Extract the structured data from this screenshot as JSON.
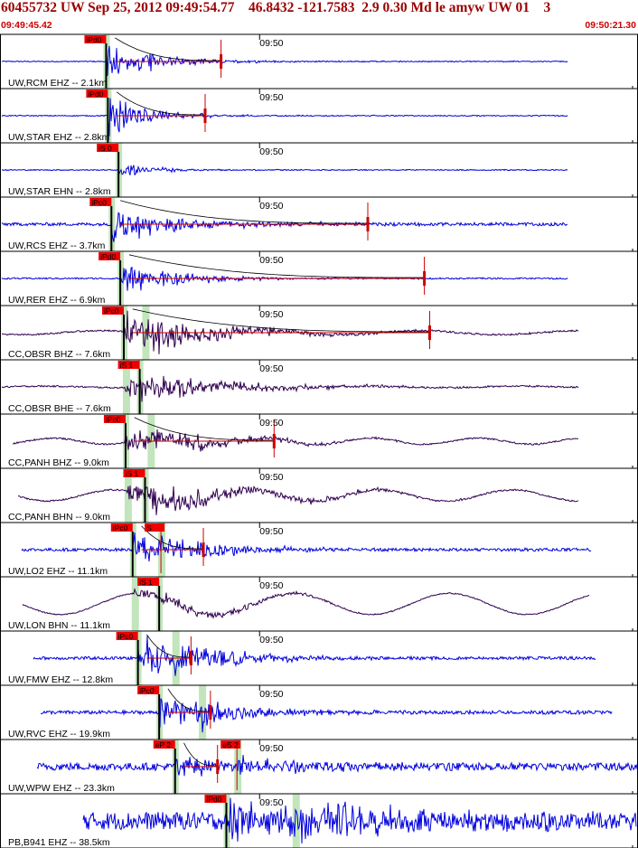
{
  "header": {
    "title": "60455732 UW Sep 25, 2012 09:49:54.77    46.8432 -121.7583  2.9 0.30 Md le amyw UW 01    3",
    "start_time": "09:49:45.42",
    "end_time": "09:50:21.30"
  },
  "colors": {
    "frame": "#000000",
    "title": "#9b0000",
    "time_label": "#cc0000",
    "seismogram_short_period": "#0000dd",
    "seismogram_broadband": "#300050",
    "coda_fit": "#cc0000",
    "pick_flag": "#ee0000",
    "pick_window": "#b8e0b0"
  },
  "chart_data": {
    "type": "line",
    "title": "60455732 UW Sep 25, 2012 09:49:54.77    46.8432 -121.7583  2.9 0.30 Md le amyw UW 01    3",
    "xlabel": "",
    "ylabel": "",
    "x_range_seconds": [
      0,
      35.88
    ],
    "x_start_label": "09:49:45.42",
    "x_end_label": "09:50:21.30",
    "minute_marker": {
      "label": "09:50",
      "t": 14.58
    },
    "grid": false,
    "traces": [
      {
        "label": "UW,RCM EHZ -- 2.1km",
        "net": "UW",
        "sta": "RCM",
        "chan": "EHZ",
        "dist_km": 2.1,
        "kind": "sp",
        "pick": "iPd0",
        "pick_t": 5.9,
        "coda_end_t": 12.4,
        "data_start_t": 0.0,
        "data_end_t": 32.0,
        "pre_noise": 0.02,
        "amp": 0.96,
        "decay": 2.4,
        "fdom": 9.0,
        "noise": 0.02,
        "dur": 6.0,
        "s_pick": null,
        "s_t": null,
        "drift_amp": 0.0,
        "drift_per": 0
      },
      {
        "label": "UW,STAR EHZ -- 2.8km",
        "net": "UW",
        "sta": "STAR",
        "chan": "EHZ",
        "dist_km": 2.8,
        "kind": "sp",
        "pick": "iPd0",
        "pick_t": 6.0,
        "coda_end_t": 11.5,
        "data_start_t": 0.0,
        "data_end_t": 32.0,
        "pre_noise": 0.02,
        "amp": 0.95,
        "decay": 1.8,
        "fdom": 9.0,
        "noise": 0.02,
        "dur": 5.5,
        "s_pick": null,
        "s_t": null,
        "drift_amp": 0.0,
        "drift_per": 0
      },
      {
        "label": "UW,STAR EHN -- 2.8km",
        "net": "UW",
        "sta": "STAR",
        "chan": "EHN",
        "dist_km": 2.8,
        "kind": "sp",
        "pick": "iS 0",
        "pick_t": 6.6,
        "coda_end_t": null,
        "data_start_t": 0.0,
        "data_end_t": 32.0,
        "pre_noise": 0.02,
        "amp": 0.5,
        "decay": 1.4,
        "fdom": 8.0,
        "noise": 0.02,
        "dur": 3.0,
        "s_pick": null,
        "s_t": null,
        "drift_amp": 0.0,
        "drift_per": 0
      },
      {
        "label": "UW,RCS EHZ -- 3.7km",
        "net": "UW",
        "sta": "RCS",
        "chan": "EHZ",
        "dist_km": 3.7,
        "kind": "sp",
        "pick": "iPc0",
        "pick_t": 6.2,
        "coda_end_t": 20.7,
        "data_start_t": 0.0,
        "data_end_t": 32.0,
        "pre_noise": 0.06,
        "amp": 0.95,
        "decay": 3.0,
        "fdom": 9.0,
        "noise": 0.06,
        "dur": 14.0,
        "s_pick": null,
        "s_t": null,
        "drift_amp": 0.0,
        "drift_per": 0
      },
      {
        "label": "UW,RER EHZ -- 6.9km",
        "net": "UW",
        "sta": "RER",
        "chan": "EHZ",
        "dist_km": 6.9,
        "kind": "sp",
        "pick": "iPd0",
        "pick_t": 6.7,
        "coda_end_t": 23.9,
        "data_start_t": 0.0,
        "data_end_t": 32.0,
        "pre_noise": 0.03,
        "amp": 0.95,
        "decay": 2.4,
        "fdom": 9.0,
        "noise": 0.03,
        "dur": 8.0,
        "s_pick": null,
        "s_t": null,
        "drift_amp": 0.0,
        "drift_per": 0
      },
      {
        "label": "CC,OBSR BHZ -- 7.6km",
        "net": "CC",
        "sta": "OBSR",
        "chan": "BHZ",
        "dist_km": 7.6,
        "kind": "bb",
        "pick": "iPc0",
        "pick_t": 6.9,
        "coda_end_t": 24.2,
        "data_start_t": 0.0,
        "data_end_t": 32.6,
        "pre_noise": 0.02,
        "amp": 0.85,
        "decay": 4.0,
        "fdom": 5.0,
        "noise": 0.03,
        "dur": 12.0,
        "s_pick": null,
        "s_t": 8.1,
        "drift_amp": 0.08,
        "drift_per": 9.0
      },
      {
        "label": "CC,OBSR BHE -- 7.6km",
        "net": "CC",
        "sta": "OBSR",
        "chan": "BHE",
        "dist_km": 7.6,
        "kind": "bb",
        "pick": "iS 1",
        "pick_t": 7.8,
        "coda_end_t": null,
        "data_start_t": 0.0,
        "data_end_t": 32.6,
        "pre_noise": 0.02,
        "amp": 0.6,
        "decay": 4.5,
        "fdom": 4.0,
        "noise": 0.03,
        "dur": 14.0,
        "s_pick": null,
        "s_t": 7.0,
        "drift_amp": 0.03,
        "drift_per": 9.0
      },
      {
        "label": "CC,PANH BHZ -- 9.0km",
        "net": "CC",
        "sta": "PANH",
        "chan": "BHZ",
        "dist_km": 9.0,
        "kind": "bb",
        "pick": "iPc0",
        "pick_t": 7.0,
        "coda_end_t": 15.4,
        "data_start_t": 0.6,
        "data_end_t": 32.6,
        "pre_noise": 0.04,
        "amp": 0.55,
        "decay": 4.0,
        "fdom": 4.0,
        "noise": 0.03,
        "dur": 10.0,
        "s_pick": null,
        "s_t": 8.4,
        "drift_amp": 0.12,
        "drift_per": 6.0
      },
      {
        "label": "CC,PANH BHN -- 9.0km",
        "net": "CC",
        "sta": "PANH",
        "chan": "BHN",
        "dist_km": 9.0,
        "kind": "bb",
        "pick": "iS 1",
        "pick_t": 8.1,
        "coda_end_t": null,
        "data_start_t": 0.9,
        "data_end_t": 32.6,
        "pre_noise": 0.04,
        "amp": 0.55,
        "decay": 5.5,
        "fdom": 3.0,
        "noise": 0.03,
        "dur": 12.0,
        "s_pick": null,
        "s_t": 7.1,
        "drift_amp": 0.22,
        "drift_per": 7.5
      },
      {
        "label": "UW,LO2 EHZ -- 11.1km",
        "net": "UW",
        "sta": "LO2",
        "chan": "EHZ",
        "dist_km": 11.1,
        "kind": "sp",
        "pick": "iPc0",
        "pick_t": 7.4,
        "coda_end_t": 11.4,
        "data_start_t": 1.1,
        "data_end_t": 33.3,
        "pre_noise": 0.05,
        "amp": 0.8,
        "decay": 3.0,
        "fdom": 8.0,
        "noise": 0.06,
        "dur": 8.0,
        "s_pick": "S",
        "s_t": 9.0,
        "drift_amp": 0.0,
        "drift_per": 0
      },
      {
        "label": "UW,LON BHN -- 11.1km",
        "net": "UW",
        "sta": "LON",
        "chan": "BHN",
        "dist_km": 11.1,
        "kind": "bb",
        "pick": "iS 1",
        "pick_t": 8.9,
        "coda_end_t": null,
        "data_start_t": 1.2,
        "data_end_t": 33.2,
        "pre_noise": 0.03,
        "amp": 0.3,
        "decay": 4.0,
        "fdom": 3.0,
        "noise": 0.02,
        "dur": 8.0,
        "s_pick": null,
        "s_t": 7.5,
        "drift_amp": 0.42,
        "drift_per": 8.8
      },
      {
        "label": "UW,FMW EHZ -- 12.8km",
        "net": "UW",
        "sta": "FMW",
        "chan": "EHZ",
        "dist_km": 12.8,
        "kind": "sp",
        "pick": "iPc0",
        "pick_t": 7.7,
        "coda_end_t": 10.7,
        "data_start_t": 1.8,
        "data_end_t": 33.6,
        "pre_noise": 0.05,
        "amp": 0.92,
        "decay": 3.2,
        "fdom": 8.0,
        "noise": 0.06,
        "dur": 8.0,
        "s_pick": null,
        "s_t": 9.8,
        "drift_amp": 0.0,
        "drift_per": 0
      },
      {
        "label": "UW,RVC EHZ -- 19.9km",
        "net": "UW",
        "sta": "RVC",
        "chan": "EHZ",
        "dist_km": 19.9,
        "kind": "sp",
        "pick": "iPc0",
        "pick_t": 8.9,
        "coda_end_t": 11.8,
        "data_start_t": 2.2,
        "data_end_t": 34.5,
        "pre_noise": 0.05,
        "amp": 0.78,
        "decay": 3.0,
        "fdom": 8.0,
        "noise": 0.07,
        "dur": 8.0,
        "s_pick": null,
        "s_t": 11.3,
        "drift_amp": 0.0,
        "drift_per": 0
      },
      {
        "label": "UW,WPW EHZ -- 23.3km",
        "net": "UW",
        "sta": "WPW",
        "chan": "EHZ",
        "dist_km": 23.3,
        "kind": "sp",
        "pick": "eP 2",
        "pick_t": 9.8,
        "coda_end_t": 12.2,
        "data_start_t": 2.0,
        "data_end_t": 36.0,
        "pre_noise": 0.12,
        "amp": 0.45,
        "decay": 4.0,
        "fdom": 8.0,
        "noise": 0.15,
        "dur": 10.0,
        "s_pick": "eS 2",
        "s_t": 13.3,
        "drift_amp": 0.0,
        "drift_per": 0
      },
      {
        "label": "PB,B941 EHZ -- 38.5km",
        "net": "PB",
        "sta": "B941",
        "chan": "EHZ",
        "dist_km": 38.5,
        "kind": "sp",
        "pick": "iPd0",
        "pick_t": 12.7,
        "coda_end_t": null,
        "data_start_t": 4.6,
        "data_end_t": 35.88,
        "pre_noise": 0.3,
        "amp": 0.9,
        "decay": 6.0,
        "fdom": 9.0,
        "noise": 0.35,
        "dur": 30.0,
        "s_pick": null,
        "s_t": 16.6,
        "drift_amp": 0.0,
        "drift_per": 0
      }
    ]
  }
}
